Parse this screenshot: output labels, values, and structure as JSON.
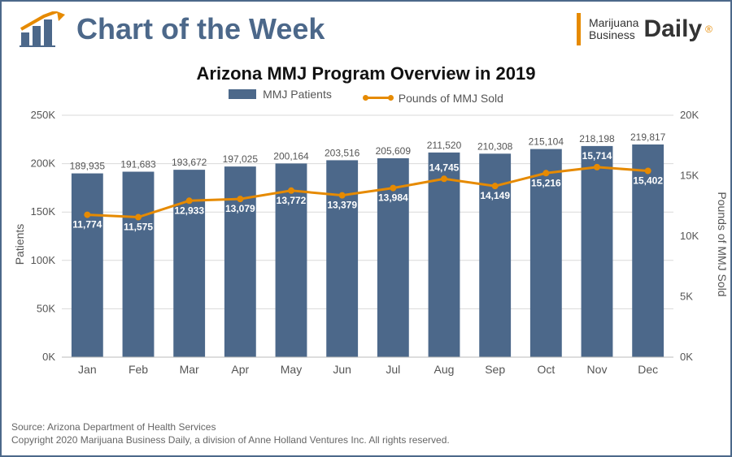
{
  "header": {
    "cotw": "Chart of the Week",
    "brand_line1": "Marijuana",
    "brand_line2": "Business",
    "brand_big": "Daily",
    "reg": "®"
  },
  "chart": {
    "title": "Arizona MMJ Program Overview in 2019",
    "legend": [
      "MMJ Patients",
      "Pounds of MMJ Sold"
    ],
    "categories": [
      "Jan",
      "Feb",
      "Mar",
      "Apr",
      "May",
      "Jun",
      "Jul",
      "Aug",
      "Sep",
      "Oct",
      "Nov",
      "Dec"
    ],
    "patients": [
      189935,
      191683,
      193672,
      197025,
      200164,
      203516,
      205609,
      211520,
      210308,
      215104,
      218198,
      219817
    ],
    "pounds": [
      11774,
      11575,
      12933,
      13079,
      13772,
      13379,
      13984,
      14745,
      14149,
      15216,
      15714,
      15402
    ],
    "line_label_pos": [
      "below",
      "below",
      "below",
      "below",
      "below",
      "below",
      "below",
      "above",
      "below",
      "below",
      "above",
      "below"
    ],
    "y_left": {
      "title": "Patients",
      "min": 0,
      "max": 250000,
      "ticks": [
        0,
        50000,
        100000,
        150000,
        200000,
        250000
      ],
      "tick_labels": [
        "0K",
        "50K",
        "100K",
        "150K",
        "200K",
        "250K"
      ]
    },
    "y_right": {
      "title": "Pounds of MMJ Sold",
      "min": 0,
      "max": 20000,
      "ticks": [
        0,
        5000,
        10000,
        15000,
        20000
      ],
      "tick_labels": [
        "0K",
        "5K",
        "10K",
        "15K",
        "20K"
      ]
    },
    "style": {
      "bar_color": "#4c688a",
      "line_color": "#e68a00",
      "grid_color": "#d9d9d9",
      "bar_width_ratio": 0.62,
      "line_width": 3,
      "marker_radius": 4,
      "background": "#ffffff",
      "bar_label_fontsize": 12,
      "axis_label_fontsize": 13
    }
  },
  "footer": {
    "source": "Source: Arizona Department of Health Services",
    "copyright": "Copyright 2020 Marijuana Business Daily, a division of Anne Holland Ventures Inc. All rights reserved."
  }
}
